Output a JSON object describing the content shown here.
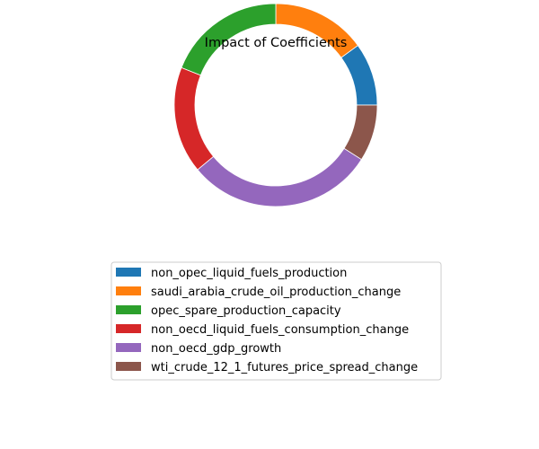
{
  "chart_data": {
    "type": "pie",
    "style": "donut",
    "title": "Impact of Coefficients",
    "slices": [
      {
        "label": "non_opec_liquid_fuels_production",
        "value": 0.1,
        "color": "#1f77b4"
      },
      {
        "label": "saudi_arabia_crude_oil_production_change",
        "value": 0.15,
        "color": "#ff7f0e"
      },
      {
        "label": "opec_spare_production_capacity",
        "value": 0.19,
        "color": "#2ca02c"
      },
      {
        "label": "non_oecd_liquid_fuels_consumption_change",
        "value": 0.17,
        "color": "#d62728"
      },
      {
        "label": "non_oecd_gdp_growth",
        "value": 0.3,
        "color": "#9467bd"
      },
      {
        "label": "wti_crude_12_1_futures_price_spread_change",
        "value": 0.09,
        "color": "#8c564b"
      }
    ],
    "legend_position": "below"
  }
}
